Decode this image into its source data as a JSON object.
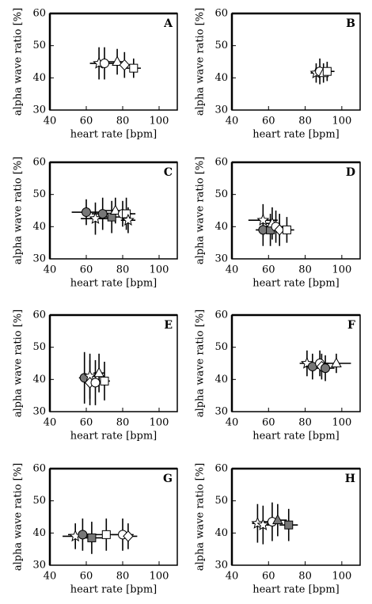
{
  "chart_data": [
    {
      "type": "scatter",
      "label": "A",
      "xlabel": "heart rate [bpm]",
      "ylabel": "alpha wave ratio [%]",
      "xlim": [
        40,
        110
      ],
      "xticks": [
        40,
        60,
        80,
        100
      ],
      "ylim": [
        30,
        60
      ],
      "yticks": [
        30,
        40,
        50,
        60
      ],
      "x": [
        67,
        70,
        77,
        81,
        86
      ],
      "values": [
        44.5,
        44.5,
        45,
        44,
        43
      ],
      "xerr": [
        5,
        5,
        5,
        4,
        4
      ],
      "yerr": [
        5,
        5,
        4,
        4,
        3
      ],
      "markers": [
        "star",
        "circle",
        "triangle",
        "diamond",
        "square"
      ],
      "fills": [
        "#ffffff",
        "#ffffff",
        "#ffffff",
        "#ffffff",
        "#ffffff"
      ]
    },
    {
      "type": "scatter",
      "label": "B",
      "xlabel": "heart rate [bpm]",
      "ylabel": "alpha wave ratio [%]",
      "xlim": [
        40,
        110
      ],
      "xticks": [
        40,
        60,
        80,
        100
      ],
      "ylim": [
        30,
        60
      ],
      "yticks": [
        30,
        40,
        50,
        60
      ],
      "x": [
        86,
        88,
        90,
        92
      ],
      "values": [
        41.5,
        42,
        41.5,
        42
      ],
      "xerr": [
        3,
        4,
        4,
        4
      ],
      "yerr": [
        3,
        4,
        3,
        3
      ],
      "markers": [
        "star",
        "circle",
        "triangle",
        "square"
      ],
      "fills": [
        "#ffffff",
        "#ffffff",
        "#ffffff",
        "#ffffff"
      ]
    },
    {
      "type": "scatter",
      "label": "C",
      "xlabel": "heart rate [bpm]",
      "ylabel": "alpha wave ratio [%]",
      "xlim": [
        40,
        110
      ],
      "xticks": [
        40,
        60,
        80,
        100
      ],
      "ylim": [
        30,
        60
      ],
      "yticks": [
        30,
        40,
        50,
        60
      ],
      "x": [
        60,
        65,
        69,
        74,
        76,
        80,
        82,
        83
      ],
      "values": [
        44.5,
        42.5,
        44,
        43,
        45,
        44,
        44,
        42
      ],
      "xerr": [
        8,
        8,
        6,
        6,
        6,
        5,
        5,
        4
      ],
      "yerr": [
        4,
        5,
        5,
        5,
        4,
        4,
        5,
        4
      ],
      "markers": [
        "circle",
        "star",
        "circle",
        "square",
        "triangle",
        "circle",
        "square",
        "star"
      ],
      "fills": [
        "#777777",
        "#ffffff",
        "#777777",
        "#777777",
        "#ffffff",
        "#ffffff",
        "#ffffff",
        "#ffffff"
      ]
    },
    {
      "type": "scatter",
      "label": "D",
      "xlabel": "heart rate [bpm]",
      "ylabel": "alpha wave ratio [%]",
      "xlim": [
        40,
        110
      ],
      "xticks": [
        40,
        60,
        80,
        100
      ],
      "ylim": [
        30,
        60
      ],
      "yticks": [
        30,
        40,
        50,
        60
      ],
      "x": [
        57,
        57,
        61,
        62,
        64,
        66,
        70
      ],
      "values": [
        42,
        39,
        39,
        41,
        40,
        39,
        39
      ],
      "xerr": [
        8,
        4,
        4,
        4,
        4,
        4,
        4
      ],
      "yerr": [
        5,
        5,
        5,
        5,
        5,
        5,
        4
      ],
      "markers": [
        "star",
        "circle",
        "square",
        "triangle",
        "circle",
        "diamond",
        "square"
      ],
      "fills": [
        "#ffffff",
        "#777777",
        "#777777",
        "#ffffff",
        "#ffffff",
        "#ffffff",
        "#ffffff"
      ]
    },
    {
      "type": "scatter",
      "label": "E",
      "xlabel": "heart rate [bpm]",
      "ylabel": "alpha wave ratio [%]",
      "xlim": [
        40,
        110
      ],
      "xticks": [
        40,
        60,
        80,
        100
      ],
      "ylim": [
        30,
        60
      ],
      "yticks": [
        30,
        40,
        50,
        60
      ],
      "x": [
        59,
        62,
        62,
        65,
        67,
        70
      ],
      "values": [
        40.5,
        41,
        39,
        39,
        42,
        39.5
      ],
      "xerr": [
        3,
        3,
        3,
        3,
        3,
        3
      ],
      "yerr": [
        8,
        7,
        7,
        7,
        6,
        6
      ],
      "markers": [
        "circle",
        "star",
        "diamond",
        "circle",
        "triangle",
        "square"
      ],
      "fills": [
        "#777777",
        "#ffffff",
        "#ffffff",
        "#ffffff",
        "#ffffff",
        "#ffffff"
      ]
    },
    {
      "type": "scatter",
      "label": "F",
      "xlabel": "heart rate [bpm]",
      "ylabel": "alpha wave ratio [%]",
      "xlim": [
        40,
        110
      ],
      "xticks": [
        40,
        60,
        80,
        100
      ],
      "ylim": [
        30,
        60
      ],
      "yticks": [
        30,
        40,
        50,
        60
      ],
      "x": [
        81,
        84,
        88,
        89,
        91,
        97
      ],
      "values": [
        45,
        44,
        45,
        44,
        43.5,
        45
      ],
      "xerr": [
        4,
        4,
        5,
        4,
        5,
        8
      ],
      "yerr": [
        4,
        4,
        4,
        4,
        4,
        3
      ],
      "markers": [
        "star",
        "circle",
        "circle",
        "diamond",
        "circle",
        "triangle"
      ],
      "fills": [
        "#ffffff",
        "#777777",
        "#ffffff",
        "#ffffff",
        "#777777",
        "#ffffff"
      ]
    },
    {
      "type": "scatter",
      "label": "G",
      "xlabel": "heart rate [bpm]",
      "ylabel": "alpha wave ratio [%]",
      "xlim": [
        40,
        110
      ],
      "xticks": [
        40,
        60,
        80,
        100
      ],
      "ylim": [
        30,
        60
      ],
      "yticks": [
        30,
        40,
        50,
        60
      ],
      "x": [
        54,
        58,
        63,
        71,
        80,
        83
      ],
      "values": [
        39,
        39.5,
        38.5,
        39.5,
        39.5,
        39
      ],
      "xerr": [
        7,
        8,
        6,
        6,
        6,
        5
      ],
      "yerr": [
        4,
        5,
        5,
        5,
        5,
        4
      ],
      "markers": [
        "star",
        "circle",
        "square",
        "square",
        "circle",
        "diamond"
      ],
      "fills": [
        "#ffffff",
        "#777777",
        "#777777",
        "#ffffff",
        "#ffffff",
        "#ffffff"
      ]
    },
    {
      "type": "scatter",
      "label": "H",
      "xlabel": "heart rate [bpm]",
      "ylabel": "alpha wave ratio [%]",
      "xlim": [
        40,
        110
      ],
      "xticks": [
        40,
        60,
        80,
        100
      ],
      "ylim": [
        30,
        60
      ],
      "yticks": [
        30,
        40,
        50,
        60
      ],
      "x": [
        54,
        57,
        62,
        65,
        71
      ],
      "values": [
        43,
        42.5,
        43.5,
        44,
        42.5
      ],
      "xerr": [
        3,
        4,
        5,
        5,
        5
      ],
      "yerr": [
        6,
        6,
        6,
        5,
        5
      ],
      "markers": [
        "star",
        "star",
        "circle",
        "triangle",
        "square"
      ],
      "fills": [
        "#ffffff",
        "#ffffff",
        "#ffffff",
        "#777777",
        "#777777"
      ]
    }
  ]
}
